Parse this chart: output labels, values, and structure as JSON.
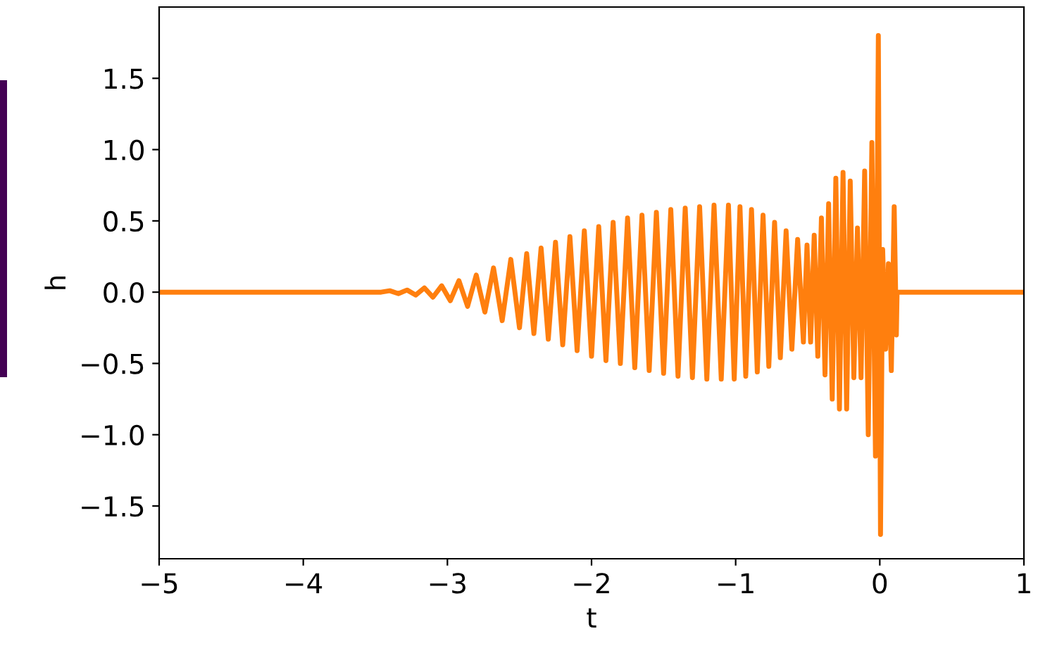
{
  "chart_data": {
    "type": "line",
    "xlabel": "t",
    "ylabel": "h",
    "xlim": [
      -5,
      1
    ],
    "ylim": [
      -1.87,
      2.0
    ],
    "xticks": [
      {
        "value": -5,
        "label": "−5"
      },
      {
        "value": -4,
        "label": "−4"
      },
      {
        "value": -3,
        "label": "−3"
      },
      {
        "value": -2,
        "label": "−2"
      },
      {
        "value": -1,
        "label": "−1"
      },
      0,
      1
    ],
    "yticks": [
      {
        "value": -1.5,
        "label": "−1.5"
      },
      {
        "value": -1.0,
        "label": "−1.0"
      },
      {
        "value": -0.5,
        "label": "−0.5"
      },
      {
        "value": 0.0,
        "label": "0.0"
      },
      {
        "value": 0.5,
        "label": "0.5"
      },
      {
        "value": 1.0,
        "label": "1.0"
      },
      {
        "value": 1.5,
        "label": "1.5"
      }
    ],
    "grid": false,
    "legend": false,
    "series": [
      {
        "color": "#ff7f0e",
        "x": [
          -5,
          -3.46,
          -3.4,
          -3.34,
          -3.28,
          -3.22,
          -3.16,
          -3.1,
          -3.04,
          -2.98,
          -2.92,
          -2.86,
          -2.8,
          -2.74,
          -2.68,
          -2.62,
          -2.56,
          -2.5,
          -2.45,
          -2.4,
          -2.35,
          -2.3,
          -2.25,
          -2.2,
          -2.15,
          -2.1,
          -2.05,
          -2.0,
          -1.95,
          -1.9,
          -1.85,
          -1.8,
          -1.75,
          -1.7,
          -1.65,
          -1.6,
          -1.55,
          -1.5,
          -1.45,
          -1.4,
          -1.35,
          -1.3,
          -1.25,
          -1.2,
          -1.15,
          -1.1,
          -1.05,
          -1.01,
          -0.97,
          -0.93,
          -0.89,
          -0.85,
          -0.81,
          -0.77,
          -0.73,
          -0.69,
          -0.65,
          -0.61,
          -0.57,
          -0.53,
          -0.505,
          -0.48,
          -0.455,
          -0.43,
          -0.405,
          -0.38,
          -0.355,
          -0.33,
          -0.305,
          -0.28,
          -0.255,
          -0.23,
          -0.205,
          -0.18,
          -0.155,
          -0.13,
          -0.105,
          -0.08,
          -0.055,
          -0.03,
          -0.01,
          0.005,
          0.02,
          0.04,
          0.06,
          0.08,
          0.1,
          0.115,
          0.12,
          1.0
        ],
        "values": [
          0,
          0,
          0.01,
          -0.01,
          0.015,
          -0.02,
          0.03,
          -0.035,
          0.045,
          -0.06,
          0.08,
          -0.1,
          0.12,
          -0.14,
          0.17,
          -0.2,
          0.23,
          -0.25,
          0.27,
          -0.29,
          0.31,
          -0.33,
          0.35,
          -0.37,
          0.39,
          -0.41,
          0.43,
          -0.45,
          0.46,
          -0.48,
          0.49,
          -0.5,
          0.52,
          -0.53,
          0.54,
          -0.55,
          0.56,
          -0.57,
          0.58,
          -0.59,
          0.59,
          -0.6,
          0.6,
          -0.61,
          0.61,
          -0.61,
          0.61,
          -0.61,
          0.6,
          -0.59,
          0.58,
          -0.56,
          0.54,
          -0.52,
          0.49,
          -0.46,
          0.43,
          -0.4,
          0.37,
          -0.35,
          0.33,
          -0.35,
          0.4,
          -0.45,
          0.52,
          -0.58,
          0.62,
          -0.75,
          0.8,
          -0.82,
          0.84,
          -0.82,
          0.78,
          -0.6,
          0.45,
          -0.6,
          0.85,
          -1.0,
          1.05,
          -1.15,
          1.8,
          -1.7,
          0.3,
          -0.4,
          0.2,
          -0.55,
          0.6,
          -0.3,
          0,
          0
        ]
      }
    ]
  }
}
